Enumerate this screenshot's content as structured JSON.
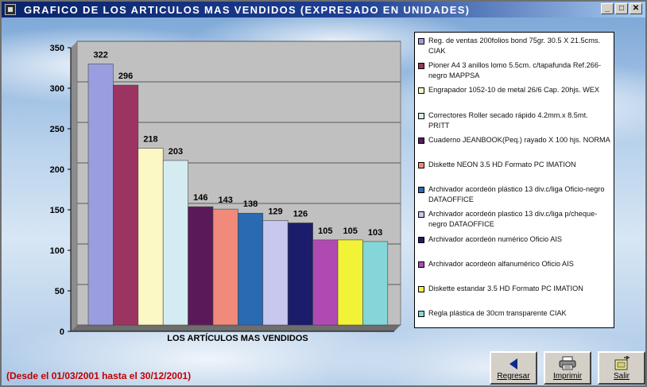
{
  "window": {
    "title": "GRAFICO DE LOS ARTICULOS MAS VENDIDOS (EXPRESADO EN UNIDADES)",
    "controls": [
      "_",
      "□",
      "✕"
    ]
  },
  "chart_data": {
    "type": "bar",
    "xlabel": "LOS ARTÍCULOS MAS VENDIDOS",
    "ylabel": "",
    "ylim": [
      0,
      350
    ],
    "yticks": [
      0,
      50,
      100,
      150,
      200,
      250,
      300,
      350
    ],
    "grid": true,
    "legend_position": "right",
    "categories": [
      "Reg. de ventas 200folios bond 75gr. 30.5 X 21.5cms. CIAK",
      "Pioner A4 3 anillos lomo 5.5cm. c/tapafunda Ref.266-negro MAPPSA",
      "Engrapador 1052-10 de metal 26/6 Cap. 20hjs. WEX",
      "Correctores Roller secado rápido 4.2mm.x 8.5mt. PRITT",
      "Cuaderno JEANBOOK(Peq.) rayado X 100 hjs. NORMA",
      "Diskette NEON 3.5 HD Formato PC IMATION",
      "Archivador acordeón plástico 13 div.c/liga Oficio-negro DATAOFFICE",
      "Archivador acordeón plastico 13 div.c/liga p/cheque-negro DATAOFFICE",
      "Archivador acordeón numérico Oficio AIS",
      "Archivador acordeón alfanumérico Oficio AIS",
      "Diskette estandar 3.5 HD Formato PC IMATION",
      "Regla plástica de 30cm transparente CIAK"
    ],
    "values": [
      322,
      296,
      218,
      203,
      146,
      143,
      138,
      129,
      126,
      105,
      105,
      103
    ],
    "colors": [
      "#9a9ee0",
      "#9c3462",
      "#fbf8c6",
      "#d4ecf1",
      "#5a1a5a",
      "#f08a7a",
      "#2a6ab2",
      "#c8c8ee",
      "#1c1c6c",
      "#b04ab2",
      "#f2f236",
      "#84d6d8"
    ]
  },
  "footer": {
    "date_range": "(Desde el 01/03/2001 hasta el 30/12/2001)"
  },
  "buttons": {
    "back": "Regresar",
    "print": "Imprimir",
    "exit": "Salir"
  }
}
